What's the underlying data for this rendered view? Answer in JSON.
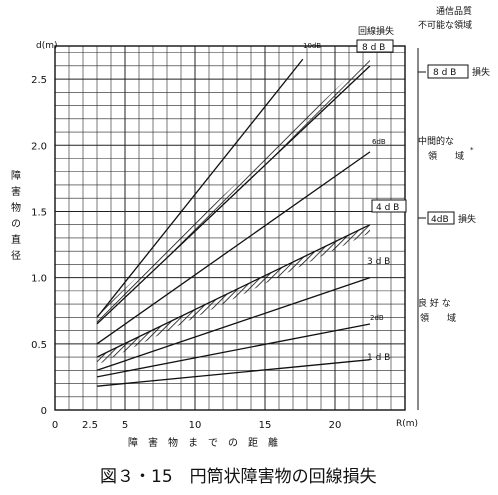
{
  "chart_data": {
    "type": "line",
    "caption": "図３・15　円筒状障害物の回線損失",
    "xlabel": "障害物までの距離",
    "x_unit": "R(m)",
    "ylabel": "障害物の直径",
    "y_unit": "d(m)",
    "xlim": [
      0,
      25
    ],
    "ylim": [
      0,
      2.75
    ],
    "x_ticks": [
      "0",
      "2.5",
      "5",
      "10",
      "15",
      "20"
    ],
    "y_ticks": [
      "0",
      "0.5",
      "1.0",
      "1.5",
      "2.0",
      "2.5"
    ],
    "grid": true,
    "series": [
      {
        "name": "10dB",
        "x": [
          3,
          17.7
        ],
        "y": [
          0.7,
          2.65
        ]
      },
      {
        "name": "8dB",
        "x": [
          3,
          22.5
        ],
        "y": [
          0.65,
          2.6
        ]
      },
      {
        "name": "6dB",
        "x": [
          3,
          22.5
        ],
        "y": [
          0.5,
          1.95
        ]
      },
      {
        "name": "4dB",
        "x": [
          3,
          22.5
        ],
        "y": [
          0.4,
          1.4
        ]
      },
      {
        "name": "3dB",
        "x": [
          3,
          22.5
        ],
        "y": [
          0.3,
          1.0
        ]
      },
      {
        "name": "2dB",
        "x": [
          3,
          22.5
        ],
        "y": [
          0.25,
          0.65
        ]
      },
      {
        "name": "1dB",
        "x": [
          3,
          22.5
        ],
        "y": [
          0.18,
          0.38
        ]
      }
    ],
    "line_labels": {
      "l10": "10dB",
      "l8": "8 d B",
      "l6": "6dB",
      "l4": "4 d B",
      "l3": "3 d B",
      "l2": "2dB",
      "l1": "1 d B"
    },
    "right_panel": {
      "header_loss": "回線損失",
      "header_quality_1": "通信品質",
      "header_quality_2": "不可能な領域",
      "loss_8": "8 d B",
      "loss_8_suffix": "損失",
      "mid_region_1": "中間的な",
      "mid_region_2": "領　　域",
      "mid_region_mark": "*",
      "loss_4": "4dB",
      "loss_4_suffix": "損失",
      "good_region_1": "良 好 な",
      "good_region_2": "領　　域"
    }
  }
}
